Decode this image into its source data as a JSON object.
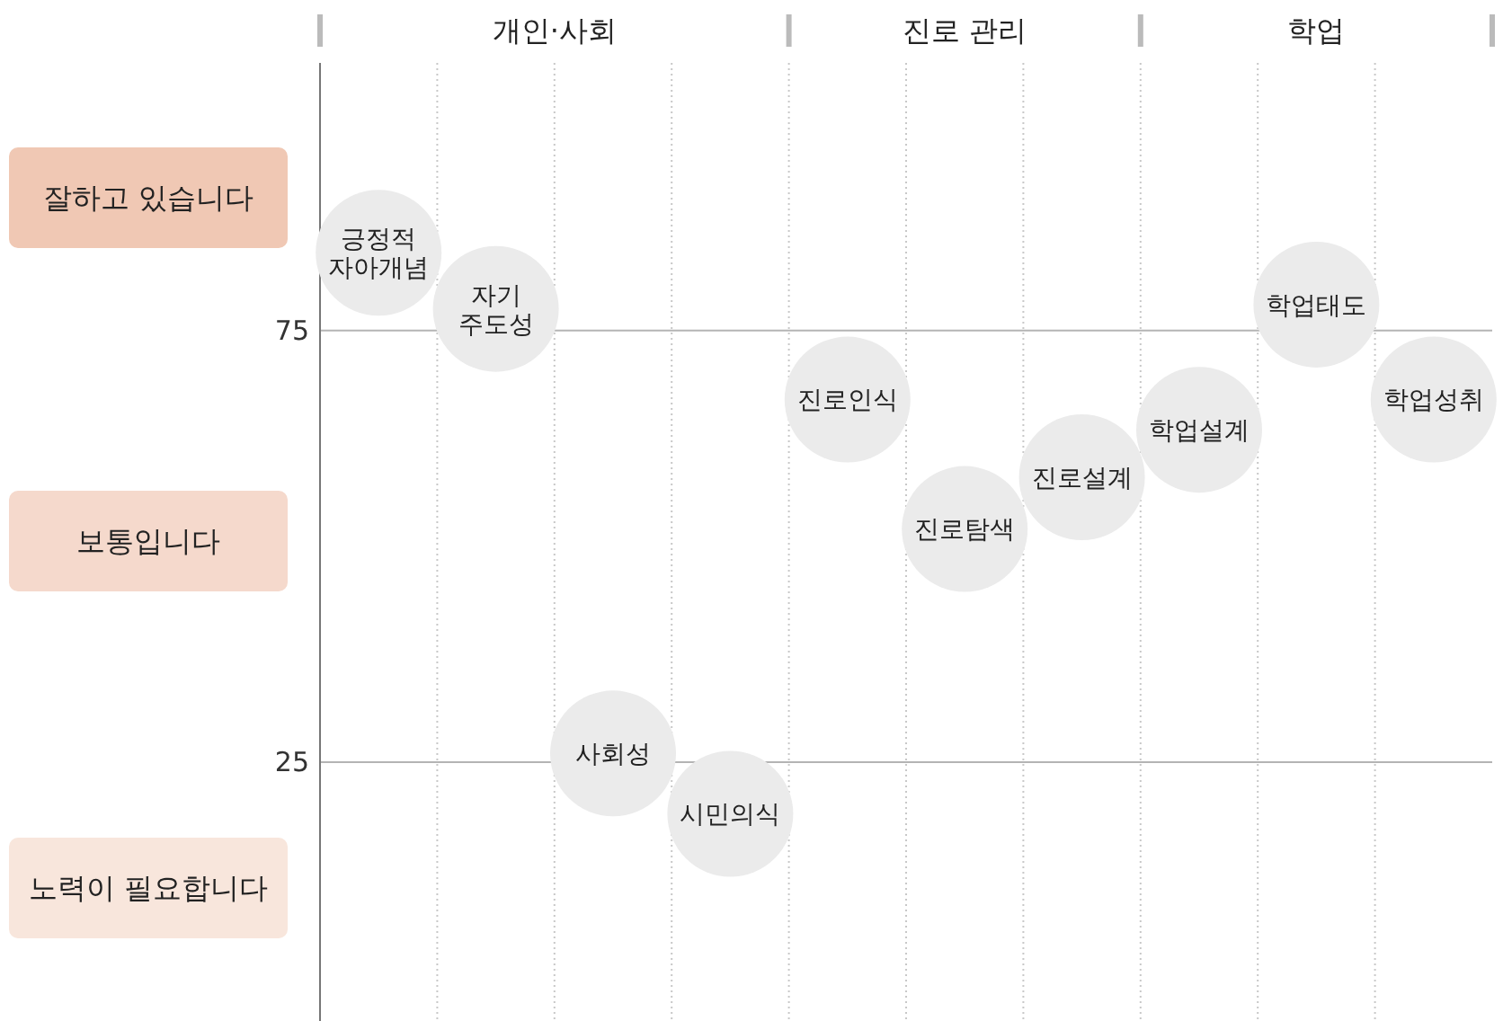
{
  "chart_data": {
    "type": "scatter",
    "marker": "circle",
    "color": "#ebebeb",
    "grid": true,
    "categories": [
      "긍정적\n자아개념",
      "자기\n주도성",
      "사회성",
      "시민의식",
      "진로인식",
      "진로탐색",
      "진로설계",
      "학업설계",
      "학업태도",
      "학업성취"
    ],
    "values": [
      84,
      77.5,
      26,
      19,
      67,
      52,
      58,
      63.5,
      78,
      67
    ],
    "ylim": [
      -5,
      106
    ],
    "yticks": [
      25,
      75
    ],
    "annotations": [
      "개인·사회",
      "진로 관리",
      "학업",
      "잘하고 있습니다",
      "보통입니다",
      "노력이 필요합니다"
    ]
  }
}
